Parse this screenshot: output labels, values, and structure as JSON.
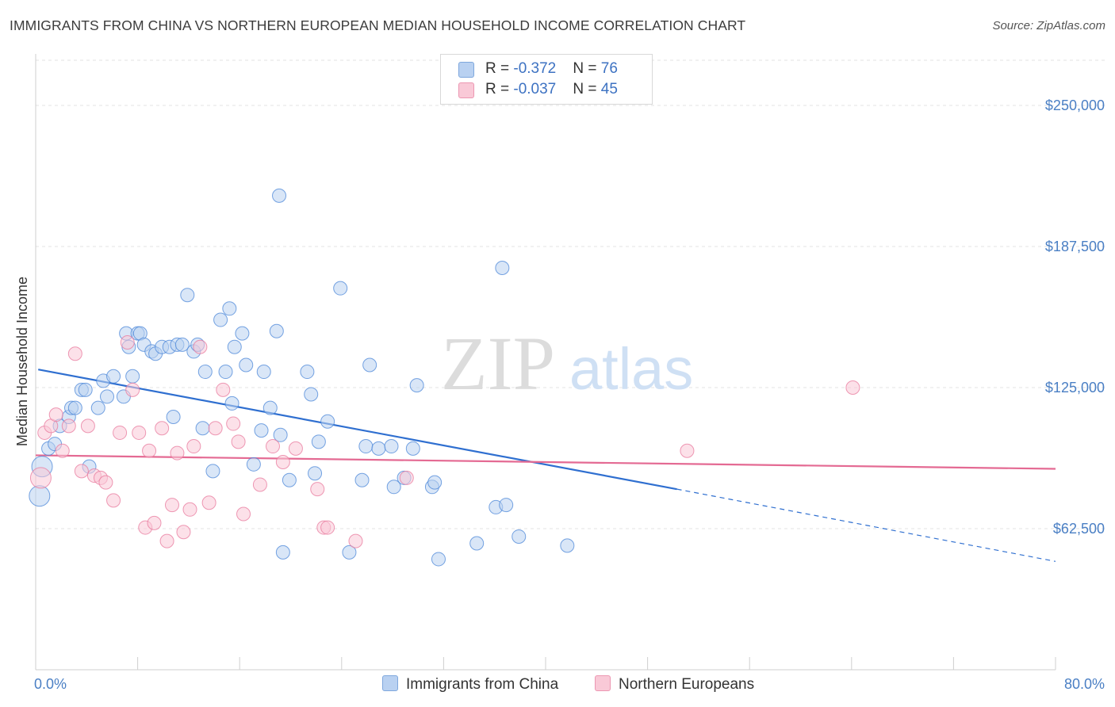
{
  "title": "IMMIGRANTS FROM CHINA VS NORTHERN EUROPEAN MEDIAN HOUSEHOLD INCOME CORRELATION CHART",
  "source": "Source: ZipAtlas.com",
  "watermark": {
    "zip": "ZIP",
    "atlas": "atlas"
  },
  "legend": {
    "rows": [
      {
        "r_label": "R = ",
        "r_value": "-0.372",
        "n_label": "N = ",
        "n_value": "76",
        "color": "#b9d1f1",
        "edge": "#7ea7dd"
      },
      {
        "r_label": "R = ",
        "r_value": "-0.037",
        "n_label": "N = ",
        "n_value": "45",
        "color": "#f9c9d7",
        "edge": "#ec97b2"
      }
    ]
  },
  "bottom_legend": [
    {
      "label": "Immigrants from China",
      "color": "#b9d1f1",
      "edge": "#7ea7dd"
    },
    {
      "label": "Northern Europeans",
      "color": "#f9c9d7",
      "edge": "#ec97b2"
    }
  ],
  "chart_data": {
    "type": "scatter",
    "title": "IMMIGRANTS FROM CHINA VS NORTHERN EUROPEAN MEDIAN HOUSEHOLD INCOME CORRELATION CHART",
    "xlabel": "",
    "ylabel": "Median Household Income",
    "xlim": [
      0,
      80
    ],
    "ylim": [
      0,
      270000
    ],
    "x_tick_labels": [
      "0.0%",
      "80.0%"
    ],
    "y_ticks": [
      62500,
      125000,
      187500,
      250000
    ],
    "y_tick_labels": [
      "$62,500",
      "$125,000",
      "$187,500",
      "$250,000"
    ],
    "grid": true,
    "legend_position": "top-center",
    "series": [
      {
        "name": "Immigrants from China",
        "color": "#4a86d8",
        "fill": "#b9d1f1",
        "trend": {
          "x0": 0.2,
          "y0": 133000,
          "x1": 50.3,
          "y1": 80000,
          "dash_to_x": 80,
          "dash_to_y": 48000,
          "color": "#2f6fd0"
        },
        "points": [
          [
            0.3,
            77000
          ],
          [
            0.5,
            90000
          ],
          [
            1.0,
            98000
          ],
          [
            1.5,
            100000
          ],
          [
            1.9,
            108000
          ],
          [
            2.6,
            112000
          ],
          [
            2.8,
            116000
          ],
          [
            3.1,
            116000
          ],
          [
            3.6,
            124000
          ],
          [
            3.9,
            124000
          ],
          [
            4.2,
            90000
          ],
          [
            4.9,
            116000
          ],
          [
            5.3,
            128000
          ],
          [
            5.6,
            121000
          ],
          [
            6.1,
            130000
          ],
          [
            6.9,
            121000
          ],
          [
            7.1,
            149000
          ],
          [
            7.3,
            143000
          ],
          [
            7.6,
            130000
          ],
          [
            8.0,
            149000
          ],
          [
            8.2,
            149000
          ],
          [
            8.5,
            144000
          ],
          [
            9.1,
            141000
          ],
          [
            9.4,
            140000
          ],
          [
            9.9,
            143000
          ],
          [
            10.5,
            143000
          ],
          [
            10.8,
            112000
          ],
          [
            11.1,
            144000
          ],
          [
            11.5,
            144000
          ],
          [
            11.9,
            166000
          ],
          [
            12.4,
            141000
          ],
          [
            12.7,
            144000
          ],
          [
            13.1,
            107000
          ],
          [
            13.3,
            132000
          ],
          [
            13.9,
            88000
          ],
          [
            14.5,
            155000
          ],
          [
            14.9,
            132000
          ],
          [
            15.2,
            160000
          ],
          [
            15.4,
            118000
          ],
          [
            15.6,
            143000
          ],
          [
            16.2,
            149000
          ],
          [
            16.5,
            135000
          ],
          [
            17.1,
            91000
          ],
          [
            17.7,
            106000
          ],
          [
            17.9,
            132000
          ],
          [
            18.4,
            116000
          ],
          [
            18.9,
            150000
          ],
          [
            19.2,
            104000
          ],
          [
            19.9,
            84000
          ],
          [
            21.3,
            132000
          ],
          [
            21.6,
            122000
          ],
          [
            21.9,
            87000
          ],
          [
            22.2,
            101000
          ],
          [
            22.9,
            110000
          ],
          [
            23.9,
            169000
          ],
          [
            24.6,
            52000
          ],
          [
            25.6,
            84000
          ],
          [
            25.9,
            99000
          ],
          [
            26.2,
            135000
          ],
          [
            26.9,
            98000
          ],
          [
            27.9,
            99000
          ],
          [
            28.1,
            81000
          ],
          [
            28.9,
            85000
          ],
          [
            29.6,
            98000
          ],
          [
            29.9,
            126000
          ],
          [
            31.1,
            81000
          ],
          [
            31.3,
            83000
          ],
          [
            31.6,
            49000
          ],
          [
            34.6,
            56000
          ],
          [
            36.1,
            72000
          ],
          [
            36.6,
            178000
          ],
          [
            36.9,
            73000
          ],
          [
            37.9,
            59000
          ],
          [
            41.7,
            55000
          ],
          [
            19.1,
            210000
          ],
          [
            19.4,
            52000
          ]
        ]
      },
      {
        "name": "Northern Europeans",
        "color": "#e8789c",
        "fill": "#f9c9d7",
        "trend": {
          "x0": 0,
          "y0": 95000,
          "x1": 80,
          "y1": 89000,
          "color": "#e46a93"
        },
        "points": [
          [
            0.4,
            85000
          ],
          [
            0.7,
            105000
          ],
          [
            1.2,
            108000
          ],
          [
            1.6,
            113000
          ],
          [
            2.1,
            97000
          ],
          [
            2.6,
            108000
          ],
          [
            3.1,
            140000
          ],
          [
            3.6,
            88000
          ],
          [
            4.1,
            108000
          ],
          [
            4.6,
            86000
          ],
          [
            5.1,
            85000
          ],
          [
            5.5,
            83000
          ],
          [
            6.1,
            75000
          ],
          [
            6.6,
            105000
          ],
          [
            7.2,
            145000
          ],
          [
            7.6,
            124000
          ],
          [
            8.1,
            105000
          ],
          [
            8.6,
            63000
          ],
          [
            8.9,
            97000
          ],
          [
            9.3,
            65000
          ],
          [
            9.9,
            107000
          ],
          [
            10.3,
            57000
          ],
          [
            10.7,
            73000
          ],
          [
            11.1,
            96000
          ],
          [
            11.6,
            61000
          ],
          [
            12.1,
            71000
          ],
          [
            12.4,
            99000
          ],
          [
            12.9,
            143000
          ],
          [
            13.6,
            74000
          ],
          [
            14.1,
            107000
          ],
          [
            14.7,
            124000
          ],
          [
            15.5,
            109000
          ],
          [
            15.9,
            101000
          ],
          [
            16.3,
            69000
          ],
          [
            17.6,
            82000
          ],
          [
            18.6,
            99000
          ],
          [
            19.4,
            92000
          ],
          [
            20.4,
            98000
          ],
          [
            22.1,
            80000
          ],
          [
            22.6,
            63000
          ],
          [
            22.9,
            63000
          ],
          [
            25.1,
            57000
          ],
          [
            29.1,
            85000
          ],
          [
            51.1,
            97000
          ],
          [
            64.1,
            125000
          ]
        ]
      }
    ]
  }
}
